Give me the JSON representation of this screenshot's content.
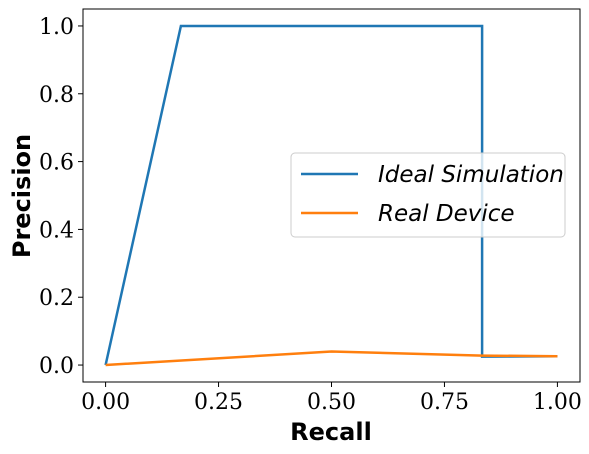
{
  "chart_data": {
    "type": "line",
    "xlabel": "Recall",
    "ylabel": "Precision",
    "xlim": [
      -0.05,
      1.05
    ],
    "ylim": [
      -0.05,
      1.05
    ],
    "x_ticks": [
      "0.00",
      "0.25",
      "0.50",
      "0.75",
      "1.00"
    ],
    "x_tick_values": [
      0.0,
      0.25,
      0.5,
      0.75,
      1.0
    ],
    "y_ticks": [
      "0.0",
      "0.2",
      "0.4",
      "0.6",
      "0.8",
      "1.0"
    ],
    "y_tick_values": [
      0.0,
      0.2,
      0.4,
      0.6,
      0.8,
      1.0
    ],
    "grid": false,
    "legend_position": "center-right",
    "series": [
      {
        "name": "Ideal Simulation",
        "color": "#1f77b4",
        "x": [
          0.0,
          0.1667,
          0.8333,
          0.8333,
          1.0
        ],
        "y": [
          0.0,
          1.0,
          1.0,
          0.025,
          0.026
        ]
      },
      {
        "name": "Real Device",
        "color": "#ff7f0e",
        "x": [
          0.0,
          0.5,
          0.8333,
          1.0
        ],
        "y": [
          0.0,
          0.04,
          0.028,
          0.026
        ]
      }
    ]
  }
}
